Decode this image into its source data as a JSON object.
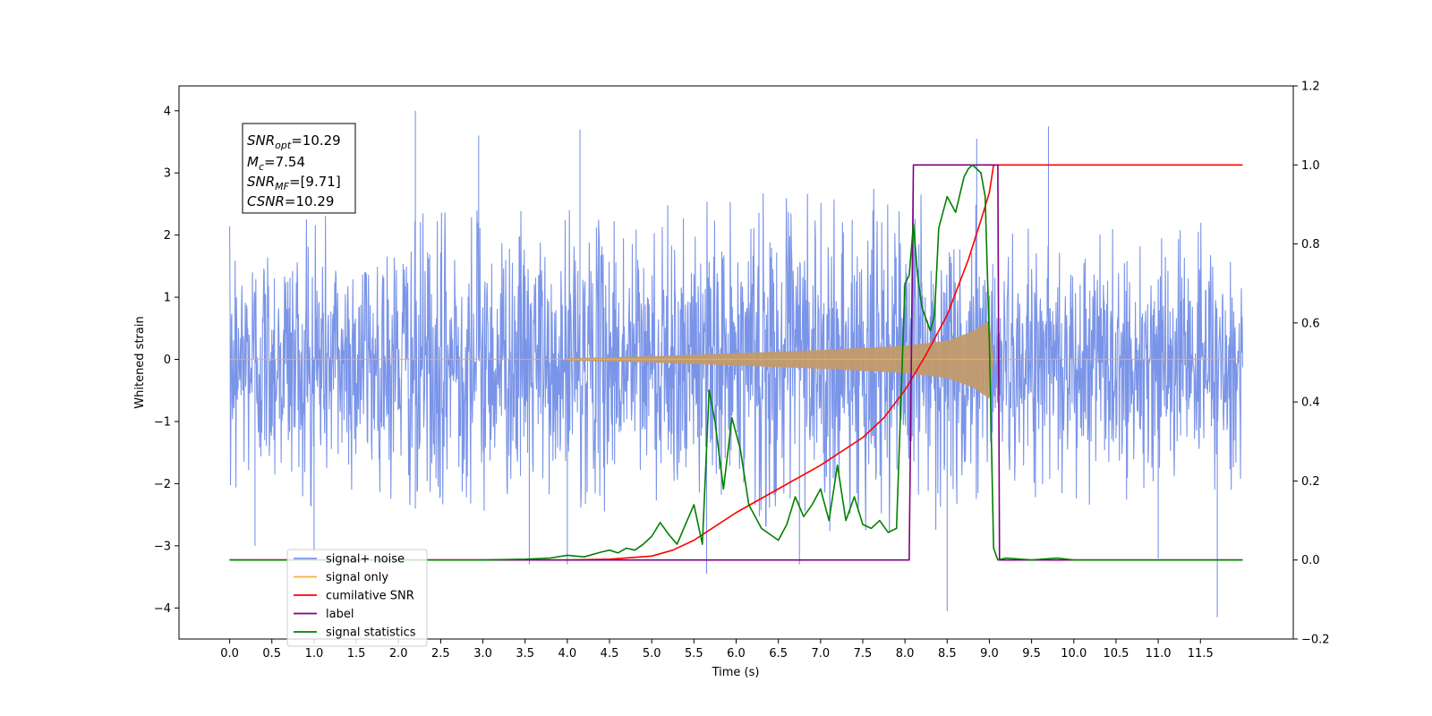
{
  "chart_data": {
    "type": "line",
    "xlabel": "Time (s)",
    "ylabel": "Whitened strain",
    "xlim": [
      -0.6,
      12.6
    ],
    "ylim": [
      -4.5,
      4.4
    ],
    "ylim_right": [
      -0.2,
      1.2
    ],
    "x_ticks": [
      "0.0",
      "0.5",
      "1.0",
      "1.5",
      "2.0",
      "2.5",
      "3.0",
      "3.5",
      "4.0",
      "4.5",
      "5.0",
      "5.5",
      "6.0",
      "6.5",
      "7.0",
      "7.5",
      "8.0",
      "8.5",
      "9.0",
      "9.5",
      "10.0",
      "10.5",
      "11.0",
      "11.5"
    ],
    "y_ticks_left": [
      "4",
      "3",
      "2",
      "1",
      "0",
      "−1",
      "−2",
      "−3",
      "−4"
    ],
    "y_ticks_right": [
      "1.2",
      "1.0",
      "0.8",
      "0.6",
      "0.4",
      "0.2",
      "0.0",
      "−0.2"
    ],
    "legend_placement": "lower-left",
    "grid": false,
    "annotation": {
      "snr_opt": {
        "label": "SNR",
        "sub": "opt",
        "value": "=10.29"
      },
      "mc": {
        "label": "M",
        "sub": "c",
        "value": "=7.54"
      },
      "snr_mf": {
        "label": "SNR",
        "sub": "MF",
        "value": "=[9.71]"
      },
      "csnr": {
        "label": "CSNR",
        "sub": "",
        "value": "=10.29"
      }
    },
    "series": [
      {
        "name": "signal+ noise",
        "color": "#7a94e8",
        "axis": "left",
        "x_range": [
          0.0,
          12.0
        ],
        "envelope": [
          2.3,
          2.3,
          2.4,
          2.3,
          2.4,
          2.4,
          2.5,
          2.4,
          2.4,
          2.5,
          2.5,
          2.6,
          2.7,
          2.7,
          2.8,
          2.8,
          2.9,
          2.7,
          2.4,
          2.3,
          2.4,
          2.4,
          2.3,
          2.3,
          2.3
        ],
        "peaks": [
          {
            "x": 2.2,
            "y": 4.0
          },
          {
            "x": 2.2,
            "y": -2.4
          },
          {
            "x": 2.95,
            "y": 3.6
          },
          {
            "x": 4.15,
            "y": 3.7
          },
          {
            "x": 4.0,
            "y": -3.3
          },
          {
            "x": 3.55,
            "y": -3.3
          },
          {
            "x": 5.65,
            "y": -3.45
          },
          {
            "x": 6.75,
            "y": -3.3
          },
          {
            "x": 8.5,
            "y": -4.05
          },
          {
            "x": 8.85,
            "y": 3.55
          },
          {
            "x": 9.7,
            "y": 3.75
          },
          {
            "x": 11.7,
            "y": -4.15
          },
          {
            "x": 1.0,
            "y": -3.1
          },
          {
            "x": 0.3,
            "y": -3.0
          },
          {
            "x": 11.0,
            "y": -3.2
          }
        ]
      },
      {
        "name": "signal only",
        "color": "#f5b041",
        "axis": "left",
        "chirp_start": 4.0,
        "chirp_end": 9.05,
        "amplitude_points": [
          [
            4.0,
            0.02
          ],
          [
            5.0,
            0.05
          ],
          [
            6.0,
            0.1
          ],
          [
            7.0,
            0.15
          ],
          [
            8.0,
            0.22
          ],
          [
            8.5,
            0.3
          ],
          [
            8.8,
            0.45
          ],
          [
            9.0,
            0.63
          ],
          [
            9.05,
            0.0
          ]
        ]
      },
      {
        "name": "cumilative SNR",
        "color": "#ff0000",
        "axis": "right",
        "x": [
          0.0,
          4.0,
          4.5,
          5.0,
          5.25,
          5.5,
          5.75,
          6.0,
          6.5,
          7.0,
          7.5,
          7.75,
          8.0,
          8.25,
          8.5,
          8.75,
          8.9,
          9.0,
          9.05,
          12.0
        ],
        "y": [
          0.0,
          0.0,
          0.002,
          0.01,
          0.025,
          0.05,
          0.085,
          0.12,
          0.18,
          0.24,
          0.31,
          0.36,
          0.43,
          0.52,
          0.62,
          0.76,
          0.86,
          0.93,
          1.0,
          1.0
        ]
      },
      {
        "name": "label",
        "color": "#800080",
        "axis": "right",
        "x": [
          0.0,
          8.05,
          8.1,
          9.1,
          9.12,
          12.0
        ],
        "y": [
          0.0,
          0.0,
          1.0,
          1.0,
          0.0,
          0.0
        ]
      },
      {
        "name": "signal statistics",
        "color": "#008000",
        "axis": "right",
        "x": [
          0.0,
          3.0,
          3.5,
          3.8,
          4.0,
          4.2,
          4.4,
          4.5,
          4.6,
          4.7,
          4.8,
          4.9,
          5.0,
          5.1,
          5.2,
          5.3,
          5.4,
          5.5,
          5.6,
          5.68,
          5.75,
          5.85,
          5.95,
          6.05,
          6.15,
          6.3,
          6.5,
          6.6,
          6.7,
          6.8,
          6.9,
          7.0,
          7.1,
          7.2,
          7.3,
          7.4,
          7.5,
          7.6,
          7.7,
          7.8,
          7.9,
          8.0,
          8.05,
          8.1,
          8.15,
          8.2,
          8.3,
          8.35,
          8.4,
          8.5,
          8.6,
          8.7,
          8.75,
          8.8,
          8.9,
          8.95,
          9.0,
          9.05,
          9.1,
          9.2,
          9.5,
          9.8,
          10.0,
          12.0
        ],
        "y": [
          0.0,
          0.0,
          0.002,
          0.005,
          0.012,
          0.008,
          0.02,
          0.025,
          0.018,
          0.03,
          0.025,
          0.04,
          0.06,
          0.095,
          0.065,
          0.04,
          0.09,
          0.14,
          0.04,
          0.43,
          0.35,
          0.18,
          0.36,
          0.28,
          0.14,
          0.08,
          0.05,
          0.09,
          0.16,
          0.11,
          0.14,
          0.18,
          0.1,
          0.24,
          0.1,
          0.16,
          0.09,
          0.08,
          0.1,
          0.07,
          0.08,
          0.7,
          0.72,
          0.85,
          0.72,
          0.64,
          0.58,
          0.62,
          0.84,
          0.92,
          0.88,
          0.97,
          0.99,
          1.0,
          0.98,
          0.92,
          0.55,
          0.03,
          0.0,
          0.005,
          0.0,
          0.005,
          0.0,
          0.0
        ]
      }
    ]
  }
}
